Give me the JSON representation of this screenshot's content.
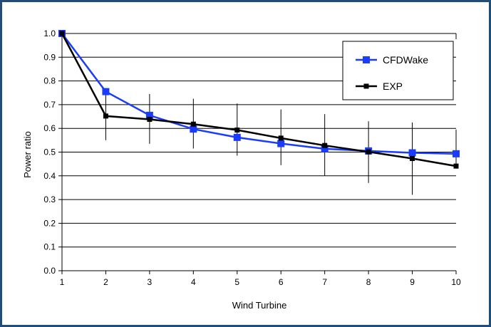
{
  "chart_data": {
    "type": "line",
    "title": "",
    "xlabel": "Wind Turbine",
    "ylabel": "Power ratio",
    "x": [
      1,
      2,
      3,
      4,
      5,
      6,
      7,
      8,
      9,
      10
    ],
    "xlim": [
      1,
      10
    ],
    "ylim": [
      0.0,
      1.0
    ],
    "x_ticks": [
      "1",
      "2",
      "3",
      "4",
      "5",
      "6",
      "7",
      "8",
      "9",
      "10"
    ],
    "y_ticks": [
      "0.0",
      "0.1",
      "0.2",
      "0.3",
      "0.4",
      "0.5",
      "0.6",
      "0.7",
      "0.8",
      "0.9",
      "1.0"
    ],
    "grid": "horizontal",
    "legend_position": "top-right",
    "series": [
      {
        "name": "CFDWake",
        "color": "#1a3cff",
        "marker": "square",
        "values": [
          1.0,
          0.755,
          0.655,
          0.597,
          0.562,
          0.536,
          0.514,
          0.505,
          0.497,
          0.493
        ]
      },
      {
        "name": "EXP",
        "color": "#000000",
        "marker": "square",
        "values": [
          1.0,
          0.652,
          0.638,
          0.618,
          0.593,
          0.559,
          0.528,
          0.501,
          0.473,
          0.441
        ],
        "error_low": [
          null,
          0.55,
          0.535,
          0.515,
          0.485,
          0.445,
          0.4,
          0.37,
          0.32,
          null
        ],
        "error_high": [
          null,
          0.755,
          0.745,
          0.725,
          0.705,
          0.68,
          0.66,
          0.63,
          0.625,
          0.595
        ]
      }
    ]
  }
}
